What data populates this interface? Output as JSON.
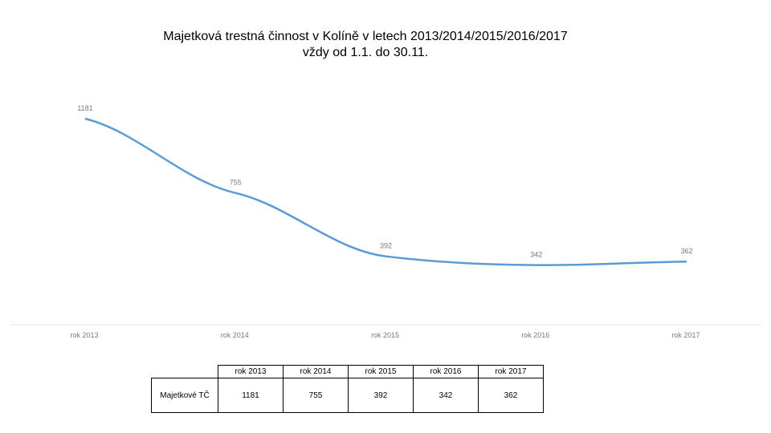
{
  "chart_data": {
    "type": "line",
    "title_lines": [
      "Majetková trestná činnost v Kolíně v letech 2013/2014/2015/2016/2017",
      "vždy od 1.1. do 30.11."
    ],
    "categories": [
      "rok 2013",
      "rok 2014",
      "rok 2015",
      "rok 2016",
      "rok 2017"
    ],
    "series": [
      {
        "name": "Majetkové TČ",
        "values": [
          1181,
          755,
          392,
          342,
          362
        ]
      }
    ],
    "ylim": [
      0,
      1300
    ],
    "grid": false,
    "legend": "none",
    "line_color": "#5b9bd5",
    "label_color": "#7a7a7a"
  },
  "table": {
    "row_header": "Majetkové TČ",
    "columns": [
      "rok 2013",
      "rok 2014",
      "rok 2015",
      "rok 2016",
      "rok 2017"
    ],
    "values": [
      "1181",
      "755",
      "392",
      "342",
      "362"
    ]
  }
}
